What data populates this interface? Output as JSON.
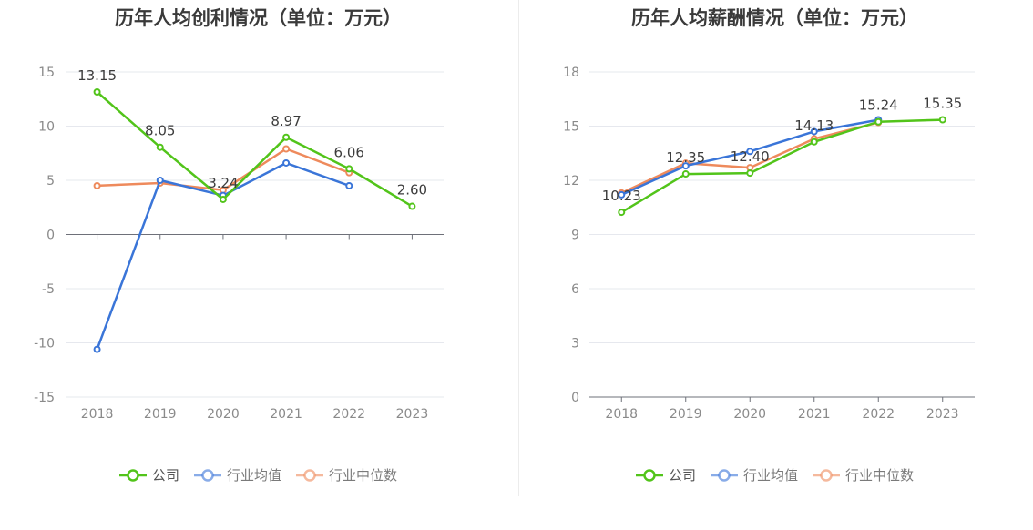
{
  "charts": [
    {
      "title": "历年人均创利情况（单位：万元）",
      "chart_data": {
        "type": "line",
        "categories": [
          "2018",
          "2019",
          "2020",
          "2021",
          "2022",
          "2023"
        ],
        "ylim": [
          -15,
          15
        ],
        "yticks": [
          15,
          10,
          5,
          0,
          -5,
          -10,
          -15
        ],
        "grid": true,
        "legend_position": "bottom",
        "series": [
          {
            "name": "公司",
            "color": "#52c41a",
            "values": [
              13.15,
              8.05,
              3.24,
              8.97,
              6.06,
              2.6
            ],
            "labels": [
              "13.15",
              "8.05",
              "3.24",
              "8.97",
              "6.06",
              "2.60"
            ]
          },
          {
            "name": "行业均值",
            "color": "#3a75d8",
            "values": [
              -10.6,
              5.0,
              3.6,
              6.6,
              4.5,
              null
            ]
          },
          {
            "name": "行业中位数",
            "color": "#ee8a5c",
            "values": [
              4.5,
              4.75,
              4.1,
              7.9,
              5.7,
              null
            ]
          }
        ]
      }
    },
    {
      "title": "历年人均薪酬情况（单位：万元）",
      "chart_data": {
        "type": "line",
        "categories": [
          "2018",
          "2019",
          "2020",
          "2021",
          "2022",
          "2023"
        ],
        "ylim": [
          0,
          18
        ],
        "yticks": [
          18,
          15,
          12,
          9,
          6,
          3,
          0
        ],
        "grid": true,
        "legend_position": "bottom",
        "series": [
          {
            "name": "公司",
            "color": "#52c41a",
            "values": [
              10.23,
              12.35,
              12.4,
              14.13,
              15.24,
              15.35
            ],
            "labels": [
              "10.23",
              "12.35",
              "12.40",
              "14.13",
              "15.24",
              "15.35"
            ]
          },
          {
            "name": "行业均值",
            "color": "#3a75d8",
            "values": [
              11.2,
              12.8,
              13.6,
              14.7,
              15.35,
              null
            ]
          },
          {
            "name": "行业中位数",
            "color": "#ee8a5c",
            "values": [
              11.3,
              12.95,
              12.7,
              14.3,
              15.2,
              null
            ]
          }
        ]
      }
    }
  ]
}
